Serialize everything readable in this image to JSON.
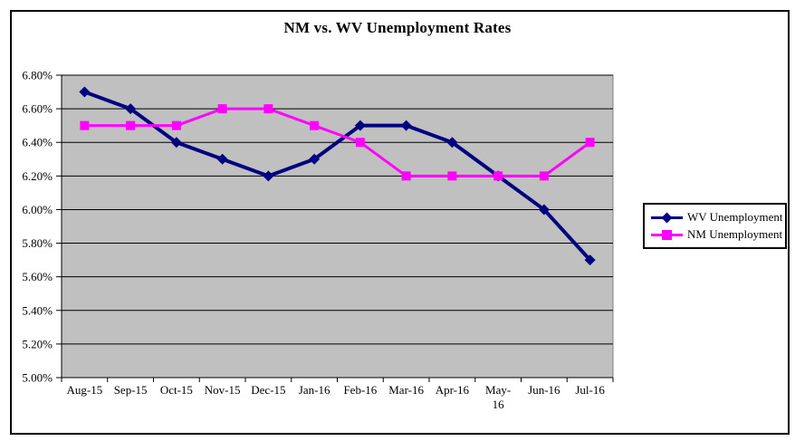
{
  "chart_data": {
    "type": "line",
    "title": "NM vs. WV Unemployment Rates",
    "categories": [
      "Aug-15",
      "Sep-15",
      "Oct-15",
      "Nov-15",
      "Dec-15",
      "Jan-16",
      "Feb-16",
      "Mar-16",
      "Apr-16",
      "May-16",
      "Jun-16",
      "Jul-16"
    ],
    "x_tick_label_lines": [
      [
        "Aug-15"
      ],
      [
        "Sep-15"
      ],
      [
        "Oct-15"
      ],
      [
        "Nov-15"
      ],
      [
        "Dec-15"
      ],
      [
        "Jan-16"
      ],
      [
        "Feb-16"
      ],
      [
        "Mar-16"
      ],
      [
        "Apr-16"
      ],
      [
        "May-",
        "16"
      ],
      [
        "Jun-16"
      ],
      [
        "Jul-16"
      ]
    ],
    "series": [
      {
        "name": "WV Unemployment",
        "color": "#000080",
        "marker": "diamond",
        "line_width": 4,
        "values": [
          6.7,
          6.6,
          6.4,
          6.3,
          6.2,
          6.3,
          6.5,
          6.5,
          6.4,
          6.2,
          6.0,
          5.7
        ]
      },
      {
        "name": "NM Unemployment",
        "color": "#FF00FF",
        "marker": "square",
        "line_width": 3,
        "values": [
          6.5,
          6.5,
          6.5,
          6.6,
          6.6,
          6.5,
          6.4,
          6.2,
          6.2,
          6.2,
          6.2,
          6.4
        ]
      }
    ],
    "y_axis": {
      "min": 5.0,
      "max": 6.8,
      "step": 0.2,
      "tick_labels": [
        "6.80%",
        "6.60%",
        "6.40%",
        "6.20%",
        "6.00%",
        "5.80%",
        "5.60%",
        "5.40%",
        "5.20%",
        "5.00%"
      ]
    },
    "grid": "horizontal",
    "legend_position": "right",
    "colors": {
      "plot_background": "#C0C0C0",
      "plot_border": "#808080",
      "gridline": "#000000",
      "axis": "#000000",
      "text": "#000000"
    }
  }
}
